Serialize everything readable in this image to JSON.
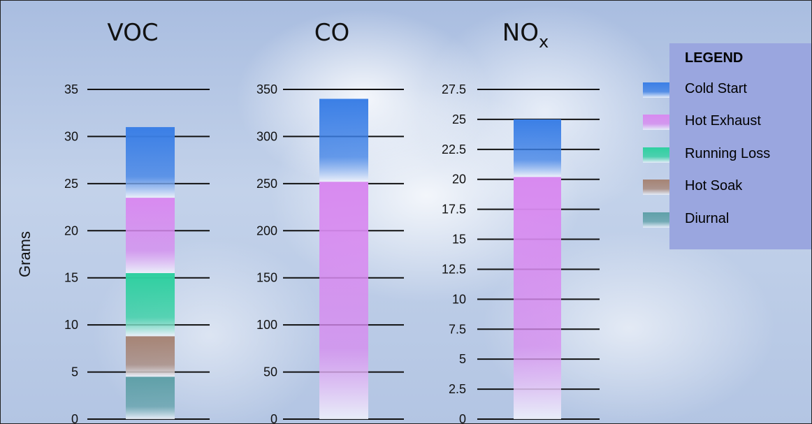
{
  "chart_data": {
    "type": "bar",
    "stacked": true,
    "ylabel": "Grams",
    "grid": false,
    "legend": {
      "title": "LEGEND",
      "placement": "top-right",
      "entries": [
        {
          "name": "Cold Start",
          "color": "#3b7fe6"
        },
        {
          "name": "Hot Exhaust",
          "color": "#d88af0"
        },
        {
          "name": "Running Loss",
          "color": "#2fd0a0"
        },
        {
          "name": "Hot Soak",
          "color": "#a68475"
        },
        {
          "name": "Diurnal",
          "color": "#5fa0a8"
        }
      ]
    },
    "panels": [
      {
        "title": "VOC",
        "title_sub": "",
        "ylim": [
          0,
          35
        ],
        "ticks": [
          "0",
          "5",
          "10",
          "15",
          "20",
          "25",
          "30",
          "35"
        ],
        "tick_values": [
          0,
          5,
          10,
          15,
          20,
          25,
          30,
          35
        ],
        "segments": [
          {
            "series": "Diurnal",
            "from": 0,
            "to": 4.5
          },
          {
            "series": "Hot Soak",
            "from": 4.5,
            "to": 8.8
          },
          {
            "series": "Running Loss",
            "from": 8.8,
            "to": 15.5
          },
          {
            "series": "Hot Exhaust",
            "from": 15.5,
            "to": 23.5
          },
          {
            "series": "Cold Start",
            "from": 23.5,
            "to": 31.0
          }
        ]
      },
      {
        "title": "CO",
        "title_sub": "",
        "ylim": [
          0,
          350
        ],
        "ticks": [
          "0",
          "50",
          "100",
          "150",
          "200",
          "250",
          "300",
          "350"
        ],
        "tick_values": [
          0,
          50,
          100,
          150,
          200,
          250,
          300,
          350
        ],
        "segments": [
          {
            "series": "Hot Exhaust",
            "from": 0,
            "to": 252
          },
          {
            "series": "Cold Start",
            "from": 252,
            "to": 340
          }
        ]
      },
      {
        "title": "NO",
        "title_sub": "x",
        "ylim": [
          0,
          27.5
        ],
        "ticks": [
          "0",
          "2.5",
          "5",
          "7.5",
          "10",
          "12.5",
          "15",
          "17.5",
          "20",
          "22.5",
          "25",
          "27.5"
        ],
        "tick_values": [
          0,
          2.5,
          5,
          7.5,
          10,
          12.5,
          15,
          17.5,
          20,
          22.5,
          25,
          27.5
        ],
        "segments": [
          {
            "series": "Hot Exhaust",
            "from": 0,
            "to": 20.2
          },
          {
            "series": "Cold Start",
            "from": 20.2,
            "to": 25.0
          }
        ]
      }
    ]
  }
}
